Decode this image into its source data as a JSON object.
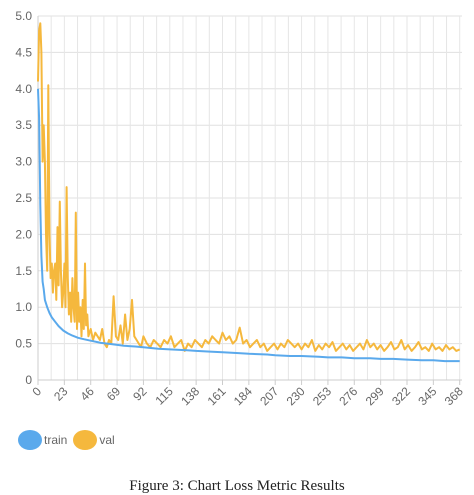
{
  "chart_data": {
    "type": "line",
    "title": "",
    "xlabel": "",
    "ylabel": "",
    "xlim": [
      0,
      370
    ],
    "ylim": [
      0,
      5.0
    ],
    "y_ticks": [
      "0",
      "0.5",
      "1.0",
      "1.5",
      "2.0",
      "2.5",
      "3.0",
      "3.5",
      "4.0",
      "4.5",
      "5.0"
    ],
    "x_ticks": [
      0,
      23,
      46,
      69,
      92,
      115,
      138,
      161,
      184,
      207,
      230,
      253,
      276,
      299,
      322,
      345,
      368
    ],
    "grid": true,
    "legend_position": "bottom-left",
    "series": [
      {
        "name": "train",
        "color": "#5aa9ec",
        "points": [
          [
            0,
            4.0
          ],
          [
            1,
            3.6
          ],
          [
            2,
            2.4
          ],
          [
            3,
            1.7
          ],
          [
            4,
            1.35
          ],
          [
            5,
            1.25
          ],
          [
            6,
            1.1
          ],
          [
            8,
            1.0
          ],
          [
            10,
            0.92
          ],
          [
            12,
            0.86
          ],
          [
            15,
            0.8
          ],
          [
            18,
            0.74
          ],
          [
            22,
            0.68
          ],
          [
            26,
            0.64
          ],
          [
            30,
            0.61
          ],
          [
            35,
            0.58
          ],
          [
            40,
            0.56
          ],
          [
            46,
            0.54
          ],
          [
            55,
            0.51
          ],
          [
            65,
            0.49
          ],
          [
            75,
            0.47
          ],
          [
            85,
            0.46
          ],
          [
            92,
            0.45
          ],
          [
            105,
            0.43
          ],
          [
            115,
            0.42
          ],
          [
            130,
            0.41
          ],
          [
            138,
            0.4
          ],
          [
            150,
            0.39
          ],
          [
            161,
            0.38
          ],
          [
            175,
            0.37
          ],
          [
            184,
            0.36
          ],
          [
            200,
            0.35
          ],
          [
            207,
            0.34
          ],
          [
            220,
            0.33
          ],
          [
            230,
            0.33
          ],
          [
            245,
            0.32
          ],
          [
            253,
            0.31
          ],
          [
            265,
            0.31
          ],
          [
            276,
            0.3
          ],
          [
            290,
            0.3
          ],
          [
            299,
            0.29
          ],
          [
            310,
            0.29
          ],
          [
            322,
            0.28
          ],
          [
            335,
            0.27
          ],
          [
            345,
            0.27
          ],
          [
            355,
            0.26
          ],
          [
            368,
            0.26
          ]
        ]
      },
      {
        "name": "val",
        "color": "#f5b83d",
        "points": [
          [
            0,
            4.1
          ],
          [
            1,
            4.8
          ],
          [
            2,
            4.9
          ],
          [
            3,
            4.5
          ],
          [
            4,
            3.0
          ],
          [
            5,
            3.5
          ],
          [
            6,
            3.0
          ],
          [
            7,
            2.0
          ],
          [
            8,
            1.5
          ],
          [
            9,
            4.05
          ],
          [
            10,
            2.0
          ],
          [
            11,
            1.4
          ],
          [
            12,
            1.6
          ],
          [
            13,
            1.2
          ],
          [
            14,
            1.5
          ],
          [
            15,
            1.6
          ],
          [
            16,
            1.1
          ],
          [
            17,
            2.1
          ],
          [
            18,
            1.3
          ],
          [
            19,
            2.45
          ],
          [
            20,
            1.5
          ],
          [
            21,
            1.0
          ],
          [
            22,
            1.2
          ],
          [
            23,
            1.6
          ],
          [
            24,
            1.0
          ],
          [
            25,
            2.65
          ],
          [
            26,
            1.4
          ],
          [
            27,
            0.9
          ],
          [
            28,
            1.2
          ],
          [
            29,
            0.8
          ],
          [
            30,
            1.4
          ],
          [
            31,
            1.0
          ],
          [
            32,
            0.8
          ],
          [
            33,
            2.3
          ],
          [
            34,
            0.7
          ],
          [
            35,
            1.2
          ],
          [
            36,
            0.8
          ],
          [
            37,
            1.0
          ],
          [
            38,
            0.6
          ],
          [
            39,
            1.1
          ],
          [
            40,
            0.7
          ],
          [
            41,
            1.6
          ],
          [
            42,
            0.75
          ],
          [
            43,
            0.9
          ],
          [
            44,
            0.6
          ],
          [
            46,
            0.7
          ],
          [
            48,
            0.55
          ],
          [
            50,
            0.65
          ],
          [
            52,
            0.6
          ],
          [
            54,
            0.55
          ],
          [
            56,
            0.7
          ],
          [
            58,
            0.5
          ],
          [
            60,
            0.45
          ],
          [
            62,
            0.55
          ],
          [
            64,
            0.5
          ],
          [
            66,
            1.15
          ],
          [
            68,
            0.6
          ],
          [
            70,
            0.55
          ],
          [
            72,
            0.75
          ],
          [
            74,
            0.5
          ],
          [
            76,
            0.9
          ],
          [
            78,
            0.55
          ],
          [
            80,
            0.7
          ],
          [
            82,
            1.1
          ],
          [
            84,
            0.6
          ],
          [
            86,
            0.55
          ],
          [
            88,
            0.5
          ],
          [
            90,
            0.45
          ],
          [
            92,
            0.6
          ],
          [
            95,
            0.5
          ],
          [
            98,
            0.45
          ],
          [
            101,
            0.55
          ],
          [
            104,
            0.5
          ],
          [
            107,
            0.45
          ],
          [
            110,
            0.55
          ],
          [
            113,
            0.5
          ],
          [
            116,
            0.6
          ],
          [
            119,
            0.45
          ],
          [
            122,
            0.5
          ],
          [
            125,
            0.55
          ],
          [
            128,
            0.4
          ],
          [
            131,
            0.5
          ],
          [
            134,
            0.45
          ],
          [
            137,
            0.55
          ],
          [
            140,
            0.5
          ],
          [
            143,
            0.45
          ],
          [
            146,
            0.55
          ],
          [
            149,
            0.5
          ],
          [
            152,
            0.6
          ],
          [
            155,
            0.55
          ],
          [
            158,
            0.5
          ],
          [
            161,
            0.65
          ],
          [
            164,
            0.55
          ],
          [
            167,
            0.6
          ],
          [
            170,
            0.5
          ],
          [
            173,
            0.55
          ],
          [
            176,
            0.72
          ],
          [
            179,
            0.5
          ],
          [
            182,
            0.55
          ],
          [
            185,
            0.45
          ],
          [
            188,
            0.5
          ],
          [
            191,
            0.55
          ],
          [
            194,
            0.45
          ],
          [
            197,
            0.5
          ],
          [
            200,
            0.4
          ],
          [
            203,
            0.45
          ],
          [
            206,
            0.5
          ],
          [
            209,
            0.42
          ],
          [
            212,
            0.5
          ],
          [
            215,
            0.45
          ],
          [
            218,
            0.55
          ],
          [
            221,
            0.5
          ],
          [
            224,
            0.45
          ],
          [
            227,
            0.5
          ],
          [
            230,
            0.42
          ],
          [
            233,
            0.5
          ],
          [
            236,
            0.45
          ],
          [
            239,
            0.55
          ],
          [
            242,
            0.4
          ],
          [
            245,
            0.48
          ],
          [
            248,
            0.42
          ],
          [
            251,
            0.5
          ],
          [
            254,
            0.45
          ],
          [
            257,
            0.52
          ],
          [
            260,
            0.4
          ],
          [
            263,
            0.45
          ],
          [
            266,
            0.5
          ],
          [
            269,
            0.42
          ],
          [
            272,
            0.48
          ],
          [
            275,
            0.4
          ],
          [
            278,
            0.45
          ],
          [
            281,
            0.5
          ],
          [
            284,
            0.42
          ],
          [
            287,
            0.55
          ],
          [
            290,
            0.45
          ],
          [
            293,
            0.5
          ],
          [
            296,
            0.42
          ],
          [
            299,
            0.48
          ],
          [
            302,
            0.4
          ],
          [
            305,
            0.45
          ],
          [
            308,
            0.52
          ],
          [
            311,
            0.42
          ],
          [
            314,
            0.45
          ],
          [
            317,
            0.55
          ],
          [
            320,
            0.42
          ],
          [
            323,
            0.48
          ],
          [
            326,
            0.4
          ],
          [
            329,
            0.45
          ],
          [
            332,
            0.52
          ],
          [
            335,
            0.42
          ],
          [
            338,
            0.45
          ],
          [
            341,
            0.4
          ],
          [
            344,
            0.5
          ],
          [
            347,
            0.42
          ],
          [
            350,
            0.45
          ],
          [
            353,
            0.4
          ],
          [
            356,
            0.48
          ],
          [
            359,
            0.42
          ],
          [
            362,
            0.45
          ],
          [
            365,
            0.4
          ],
          [
            368,
            0.42
          ]
        ]
      }
    ]
  },
  "legend": [
    {
      "label": "train",
      "color": "#5aa9ec"
    },
    {
      "label": "val",
      "color": "#f5b83d"
    }
  ],
  "caption": "Figure 3: Chart Loss Metric Results"
}
